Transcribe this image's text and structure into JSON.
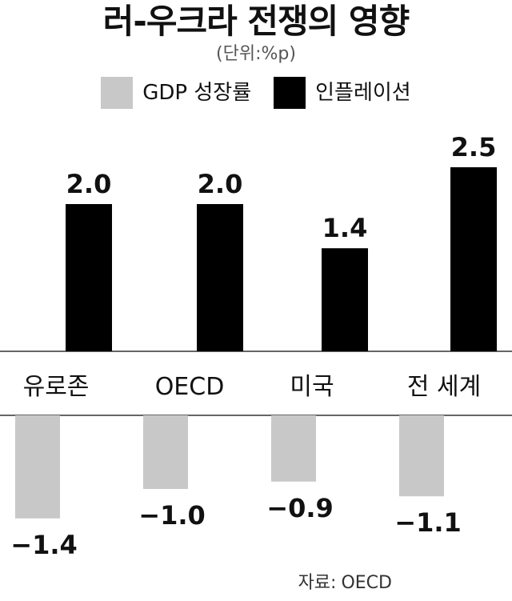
{
  "chart_data": {
    "type": "bar",
    "title": "러-우크라 전쟁의 영향",
    "unit": "(단위:%p)",
    "categories": [
      "유로존",
      "OECD",
      "미국",
      "전 세계"
    ],
    "series": [
      {
        "name": "GDP 성장률",
        "color": "#c8c8c8",
        "values": [
          -1.4,
          -1.0,
          -0.9,
          -1.1
        ],
        "labels": [
          "−1.4",
          "−1.0",
          "−0.9",
          "−1.1"
        ]
      },
      {
        "name": "인플레이션",
        "color": "#000000",
        "values": [
          2.0,
          2.0,
          1.4,
          2.5
        ],
        "labels": [
          "2.0",
          "2.0",
          "1.4",
          "2.5"
        ]
      }
    ],
    "legend": "top-center",
    "grid": false
  },
  "source": {
    "label": "자료:",
    "org": "OECD"
  }
}
